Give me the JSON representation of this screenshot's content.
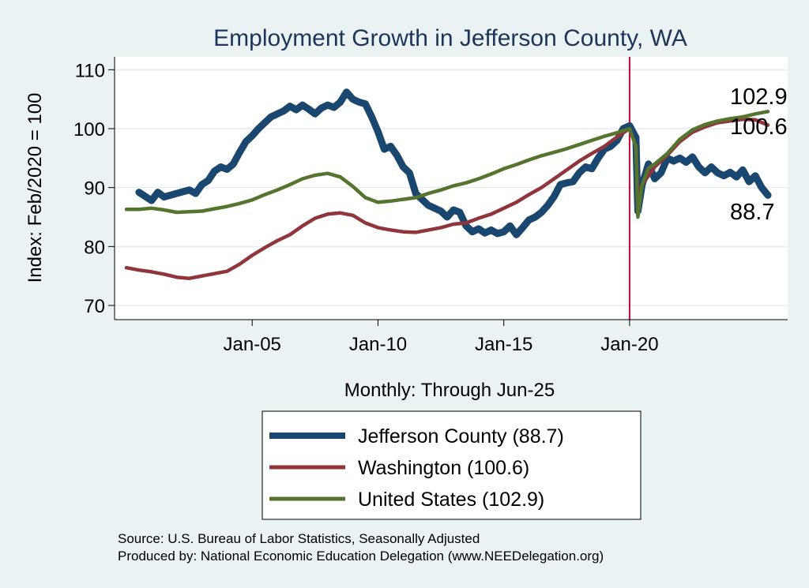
{
  "chart_data": {
    "type": "line",
    "title": "Employment Growth in Jefferson  County, WA",
    "ylabel": "Index: Feb/2020 = 100",
    "xlabel": "Monthly: Through Jun-25",
    "ylim": [
      68,
      112
    ],
    "xlim": [
      2000.0,
      2025.75
    ],
    "yticks": [
      "70",
      "80",
      "90",
      "100",
      "110"
    ],
    "xticks": [
      {
        "label": "Jan-05",
        "x": 2005.0
      },
      {
        "label": "Jan-10",
        "x": 2010.0
      },
      {
        "label": "Jan-15",
        "x": 2015.0
      },
      {
        "label": "Jan-20",
        "x": 2020.0
      }
    ],
    "reference_line_x": 2020.0,
    "series": [
      {
        "name": "Jefferson  County",
        "legend": "Jefferson  County (88.7)",
        "end_label": "88.7",
        "color": "#1a476f",
        "points": [
          [
            2000.5,
            89.2
          ],
          [
            2000.75,
            88.5
          ],
          [
            2001.0,
            87.8
          ],
          [
            2001.25,
            89.2
          ],
          [
            2001.5,
            88.4
          ],
          [
            2002.0,
            89.0
          ],
          [
            2002.5,
            89.6
          ],
          [
            2002.75,
            89.0
          ],
          [
            2003.0,
            90.5
          ],
          [
            2003.25,
            91.2
          ],
          [
            2003.5,
            92.8
          ],
          [
            2003.75,
            93.5
          ],
          [
            2004.0,
            93.1
          ],
          [
            2004.25,
            94.0
          ],
          [
            2004.5,
            96.0
          ],
          [
            2004.75,
            97.8
          ],
          [
            2005.0,
            98.8
          ],
          [
            2005.25,
            100.0
          ],
          [
            2005.5,
            101.0
          ],
          [
            2005.75,
            102.0
          ],
          [
            2006.0,
            102.5
          ],
          [
            2006.25,
            103.0
          ],
          [
            2006.5,
            103.8
          ],
          [
            2006.75,
            103.2
          ],
          [
            2007.0,
            104.0
          ],
          [
            2007.25,
            103.3
          ],
          [
            2007.5,
            102.5
          ],
          [
            2007.75,
            103.5
          ],
          [
            2008.0,
            104.0
          ],
          [
            2008.25,
            103.6
          ],
          [
            2008.5,
            104.5
          ],
          [
            2008.75,
            106.2
          ],
          [
            2009.0,
            105.0
          ],
          [
            2009.25,
            104.5
          ],
          [
            2009.5,
            104.2
          ],
          [
            2009.75,
            102.0
          ],
          [
            2010.0,
            99.5
          ],
          [
            2010.25,
            96.5
          ],
          [
            2010.5,
            97.0
          ],
          [
            2010.75,
            95.5
          ],
          [
            2011.0,
            93.5
          ],
          [
            2011.25,
            92.5
          ],
          [
            2011.5,
            89.0
          ],
          [
            2011.75,
            88.0
          ],
          [
            2012.0,
            87.0
          ],
          [
            2012.5,
            86.0
          ],
          [
            2012.75,
            85.0
          ],
          [
            2013.0,
            86.2
          ],
          [
            2013.25,
            85.8
          ],
          [
            2013.5,
            83.5
          ],
          [
            2013.75,
            82.5
          ],
          [
            2014.0,
            83.0
          ],
          [
            2014.25,
            82.3
          ],
          [
            2014.5,
            82.8
          ],
          [
            2014.75,
            82.2
          ],
          [
            2015.0,
            82.5
          ],
          [
            2015.25,
            83.5
          ],
          [
            2015.5,
            82.0
          ],
          [
            2015.75,
            83.2
          ],
          [
            2016.0,
            84.5
          ],
          [
            2016.25,
            85.0
          ],
          [
            2016.5,
            85.8
          ],
          [
            2016.75,
            87.0
          ],
          [
            2017.0,
            88.5
          ],
          [
            2017.25,
            90.5
          ],
          [
            2017.5,
            90.8
          ],
          [
            2017.75,
            91.0
          ],
          [
            2018.0,
            92.5
          ],
          [
            2018.25,
            93.5
          ],
          [
            2018.5,
            93.2
          ],
          [
            2018.75,
            95.0
          ],
          [
            2019.0,
            96.5
          ],
          [
            2019.25,
            97.0
          ],
          [
            2019.5,
            98.0
          ],
          [
            2019.75,
            100.0
          ],
          [
            2020.0,
            100.5
          ],
          [
            2020.25,
            98.5
          ],
          [
            2020.33,
            86.0
          ],
          [
            2020.5,
            90.5
          ],
          [
            2020.75,
            94.0
          ],
          [
            2021.0,
            91.5
          ],
          [
            2021.25,
            92.5
          ],
          [
            2021.5,
            95.0
          ],
          [
            2021.75,
            94.5
          ],
          [
            2022.0,
            95.0
          ],
          [
            2022.25,
            94.3
          ],
          [
            2022.5,
            95.2
          ],
          [
            2022.75,
            93.5
          ],
          [
            2023.0,
            92.5
          ],
          [
            2023.25,
            93.5
          ],
          [
            2023.5,
            92.5
          ],
          [
            2023.75,
            92.0
          ],
          [
            2024.0,
            92.6
          ],
          [
            2024.25,
            91.8
          ],
          [
            2024.5,
            93.0
          ],
          [
            2024.75,
            91.0
          ],
          [
            2025.0,
            92.0
          ],
          [
            2025.25,
            90.0
          ],
          [
            2025.5,
            88.7
          ]
        ]
      },
      {
        "name": "Washington",
        "legend": "Washington (100.6)",
        "end_label": "100.6",
        "color": "#90353b",
        "points": [
          [
            2000.0,
            76.4
          ],
          [
            2000.5,
            76.0
          ],
          [
            2001.0,
            75.7
          ],
          [
            2001.5,
            75.3
          ],
          [
            2002.0,
            74.8
          ],
          [
            2002.5,
            74.6
          ],
          [
            2003.0,
            75.0
          ],
          [
            2003.5,
            75.4
          ],
          [
            2004.0,
            75.8
          ],
          [
            2004.5,
            77.0
          ],
          [
            2005.0,
            78.5
          ],
          [
            2005.5,
            79.8
          ],
          [
            2006.0,
            81.0
          ],
          [
            2006.5,
            82.0
          ],
          [
            2007.0,
            83.5
          ],
          [
            2007.5,
            84.8
          ],
          [
            2008.0,
            85.5
          ],
          [
            2008.5,
            85.7
          ],
          [
            2009.0,
            85.3
          ],
          [
            2009.5,
            84.0
          ],
          [
            2010.0,
            83.2
          ],
          [
            2010.5,
            82.8
          ],
          [
            2011.0,
            82.5
          ],
          [
            2011.5,
            82.4
          ],
          [
            2012.0,
            82.8
          ],
          [
            2012.5,
            83.2
          ],
          [
            2013.0,
            83.8
          ],
          [
            2013.5,
            84.0
          ],
          [
            2014.0,
            84.8
          ],
          [
            2014.5,
            85.5
          ],
          [
            2015.0,
            86.5
          ],
          [
            2015.5,
            87.5
          ],
          [
            2016.0,
            88.8
          ],
          [
            2016.5,
            90.0
          ],
          [
            2017.0,
            91.5
          ],
          [
            2017.5,
            93.0
          ],
          [
            2018.0,
            94.5
          ],
          [
            2018.5,
            95.8
          ],
          [
            2019.0,
            97.0
          ],
          [
            2019.5,
            98.6
          ],
          [
            2020.0,
            100.0
          ],
          [
            2020.25,
            97.0
          ],
          [
            2020.33,
            88.0
          ],
          [
            2020.5,
            90.5
          ],
          [
            2020.75,
            92.0
          ],
          [
            2021.0,
            93.5
          ],
          [
            2021.5,
            95.5
          ],
          [
            2022.0,
            97.8
          ],
          [
            2022.5,
            99.4
          ],
          [
            2023.0,
            100.3
          ],
          [
            2023.5,
            101.0
          ],
          [
            2024.0,
            101.3
          ],
          [
            2024.5,
            101.6
          ],
          [
            2025.0,
            101.5
          ],
          [
            2025.5,
            100.6
          ]
        ]
      },
      {
        "name": "United States",
        "legend": "United States (102.9)",
        "end_label": "102.9",
        "color": "#55752f",
        "points": [
          [
            2000.0,
            86.3
          ],
          [
            2000.5,
            86.3
          ],
          [
            2001.0,
            86.5
          ],
          [
            2001.5,
            86.2
          ],
          [
            2002.0,
            85.8
          ],
          [
            2002.5,
            85.9
          ],
          [
            2003.0,
            86.0
          ],
          [
            2003.5,
            86.4
          ],
          [
            2004.0,
            86.8
          ],
          [
            2004.5,
            87.3
          ],
          [
            2005.0,
            87.9
          ],
          [
            2005.5,
            88.8
          ],
          [
            2006.0,
            89.6
          ],
          [
            2006.5,
            90.5
          ],
          [
            2007.0,
            91.5
          ],
          [
            2007.5,
            92.1
          ],
          [
            2008.0,
            92.4
          ],
          [
            2008.5,
            91.8
          ],
          [
            2009.0,
            90.2
          ],
          [
            2009.5,
            88.3
          ],
          [
            2010.0,
            87.5
          ],
          [
            2010.5,
            87.7
          ],
          [
            2011.0,
            88.0
          ],
          [
            2011.5,
            88.3
          ],
          [
            2012.0,
            89.0
          ],
          [
            2012.5,
            89.6
          ],
          [
            2013.0,
            90.3
          ],
          [
            2013.5,
            90.8
          ],
          [
            2014.0,
            91.5
          ],
          [
            2014.5,
            92.3
          ],
          [
            2015.0,
            93.2
          ],
          [
            2015.5,
            93.9
          ],
          [
            2016.0,
            94.7
          ],
          [
            2016.5,
            95.4
          ],
          [
            2017.0,
            96.0
          ],
          [
            2017.5,
            96.6
          ],
          [
            2018.0,
            97.3
          ],
          [
            2018.5,
            98.0
          ],
          [
            2019.0,
            98.7
          ],
          [
            2019.5,
            99.3
          ],
          [
            2020.0,
            100.0
          ],
          [
            2020.25,
            97.0
          ],
          [
            2020.33,
            85.0
          ],
          [
            2020.5,
            90.5
          ],
          [
            2020.75,
            93.3
          ],
          [
            2021.0,
            94.0
          ],
          [
            2021.5,
            95.8
          ],
          [
            2022.0,
            98.2
          ],
          [
            2022.5,
            99.8
          ],
          [
            2023.0,
            100.7
          ],
          [
            2023.5,
            101.3
          ],
          [
            2024.0,
            101.7
          ],
          [
            2024.5,
            102.0
          ],
          [
            2025.0,
            102.5
          ],
          [
            2025.5,
            102.9
          ]
        ]
      }
    ],
    "source_lines": [
      "Source: U.S. Bureau of Labor Statistics, Seasonally Adjusted",
      "Produced by: National Economic Education Delegation (www.NEEDelegation.org)"
    ]
  }
}
